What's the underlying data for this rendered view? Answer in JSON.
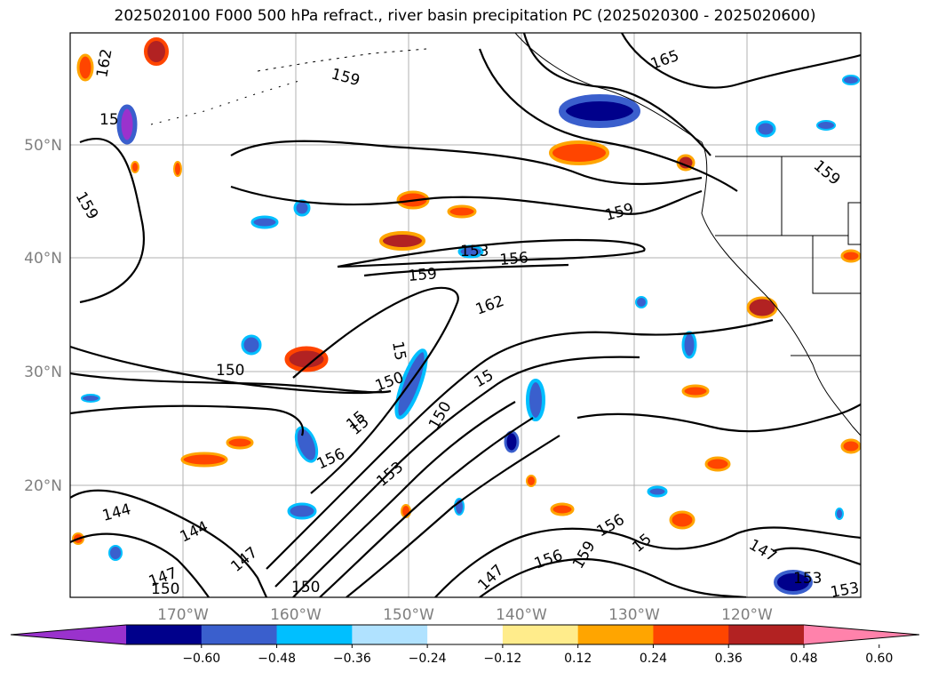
{
  "title": "2025020100 F000 500 hPa refract., river basin precipitation PC (2025020300 - 2025020600)",
  "latitude_labels": [
    "50°N",
    "40°N",
    "30°N",
    "20°N"
  ],
  "longitude_labels": [
    "170°W",
    "160°W",
    "150°W",
    "140°W",
    "130°W",
    "120°W"
  ],
  "contour_labels": [
    "162",
    "159",
    "165",
    "15",
    "159",
    "159",
    "159",
    "153",
    "156",
    "159",
    "162",
    "15",
    "150",
    "150",
    "15",
    "150",
    "156",
    "15",
    "153",
    "15",
    "144",
    "144",
    "147",
    "147",
    "150",
    "150",
    "147",
    "156",
    "159",
    "156",
    "15",
    "147",
    "153",
    "153"
  ],
  "colorbar": {
    "colors": [
      "#9a32cd",
      "#00008b",
      "#3a5fcd",
      "#00bfff",
      "#b0e2ff",
      "#ffffff",
      "#ffec8b",
      "#ffa500",
      "#ff4500",
      "#b22222",
      "#ff82ab"
    ],
    "tick_labels": [
      "−0.60",
      "−0.48",
      "−0.36",
      "−0.24",
      "−0.12",
      "0.12",
      "0.24",
      "0.36",
      "0.48",
      "0.60"
    ],
    "extend": "both"
  }
}
